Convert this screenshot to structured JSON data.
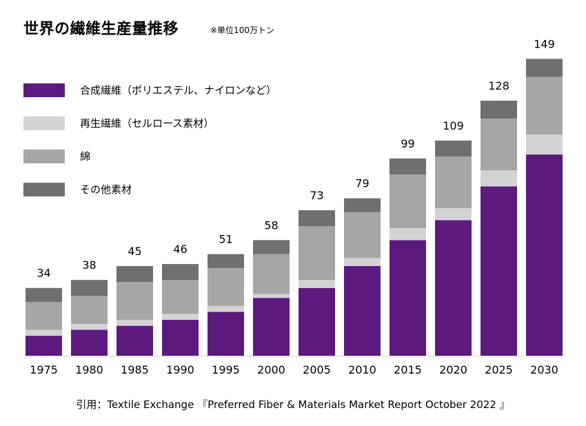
{
  "chart_data": {
    "type": "bar",
    "stacked": true,
    "title": "世界の繊維生産量推移",
    "unit_note": "※単位100万トン",
    "categories": [
      "1975",
      "1980",
      "1985",
      "1990",
      "1995",
      "2000",
      "2005",
      "2010",
      "2015",
      "2020",
      "2025",
      "2030"
    ],
    "totals": [
      "34",
      "38",
      "45",
      "46",
      "51",
      "58",
      "73",
      "79",
      "99",
      "109",
      "128",
      "149"
    ],
    "series": [
      {
        "name": "合成繊維（ポリエステル、ナイロンなど）",
        "color": "#5c1a7e",
        "values": [
          10,
          13,
          15,
          18,
          22,
          29,
          34,
          45,
          58,
          68,
          85,
          101
        ]
      },
      {
        "name": "再生繊維（セルロース素材）",
        "color": "#d3d3d3",
        "values": [
          3,
          3,
          3,
          3,
          3,
          2,
          4,
          4,
          6,
          6,
          8,
          10
        ]
      },
      {
        "name": "綿",
        "color": "#a6a6a6",
        "values": [
          14,
          14,
          19,
          17,
          19,
          20,
          27,
          23,
          27,
          26,
          26,
          29
        ]
      },
      {
        "name": "その他素材",
        "color": "#706e6f",
        "values": [
          7,
          8,
          8,
          8,
          7,
          7,
          8,
          7,
          8,
          8,
          9,
          9
        ]
      }
    ],
    "ylim": [
      0,
      150
    ],
    "xlabel": "",
    "ylabel": "",
    "grid": false,
    "legend": "top-left"
  },
  "source": "引用：Textile Exchange 『Preferred Fiber & Materials Market Report October 2022 』"
}
